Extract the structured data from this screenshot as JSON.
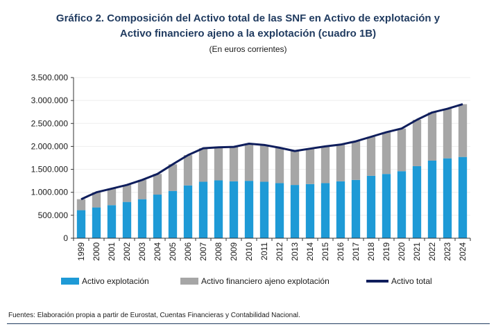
{
  "title_line1": "Gráfico 2. Composición del Activo total de las SNF en Activo de explotación y",
  "title_line2": "Activo financiero ajeno a la explotación (cuadro 1B)",
  "subtitle": "(En euros corrientes)",
  "source": "Fuentes: Elaboración propia a partir de Eurostat, Cuentas Financieras y Contabilidad Nacional.",
  "colors": {
    "explotacion": "#1e9ad6",
    "financiero": "#a6a6a6",
    "total": "#0f1e5c",
    "title": "#1f3a5f"
  },
  "legend": {
    "explotacion": "Activo explotación",
    "financiero": "Activo financiero ajeno explotación",
    "total": "Activo total"
  },
  "chart_data": {
    "type": "bar",
    "stacked": true,
    "categories": [
      "1999",
      "2000",
      "2001",
      "2002",
      "2003",
      "2004",
      "2005",
      "2006",
      "2007",
      "2008",
      "2009",
      "2010",
      "2011",
      "2012",
      "2013",
      "2014",
      "2015",
      "2016",
      "2017",
      "2018",
      "2019",
      "2020",
      "2021",
      "2022",
      "2023",
      "2024"
    ],
    "ylim": [
      0,
      3500000
    ],
    "yticks": [
      "0",
      "500.000",
      "1.000.000",
      "1.500.000",
      "2.000.000",
      "2.500.000",
      "3.000.000",
      "3.500.000"
    ],
    "series": [
      {
        "name": "Activo explotación",
        "type": "bar",
        "values": [
          610000,
          670000,
          720000,
          790000,
          850000,
          950000,
          1030000,
          1150000,
          1230000,
          1260000,
          1240000,
          1250000,
          1230000,
          1200000,
          1160000,
          1180000,
          1200000,
          1240000,
          1270000,
          1360000,
          1400000,
          1460000,
          1570000,
          1690000,
          1740000,
          1770000
        ]
      },
      {
        "name": "Activo financiero ajeno explotación",
        "type": "bar",
        "values": [
          240000,
          330000,
          360000,
          370000,
          420000,
          450000,
          580000,
          660000,
          730000,
          720000,
          750000,
          810000,
          800000,
          770000,
          740000,
          770000,
          790000,
          800000,
          840000,
          850000,
          910000,
          930000,
          1010000,
          1050000,
          1080000,
          1150000
        ]
      },
      {
        "name": "Activo total",
        "type": "line",
        "values": [
          850000,
          1000000,
          1080000,
          1160000,
          1270000,
          1400000,
          1610000,
          1810000,
          1960000,
          1980000,
          1990000,
          2060000,
          2030000,
          1970000,
          1900000,
          1950000,
          2000000,
          2040000,
          2110000,
          2210000,
          2310000,
          2390000,
          2580000,
          2740000,
          2820000,
          2920000
        ]
      }
    ]
  }
}
